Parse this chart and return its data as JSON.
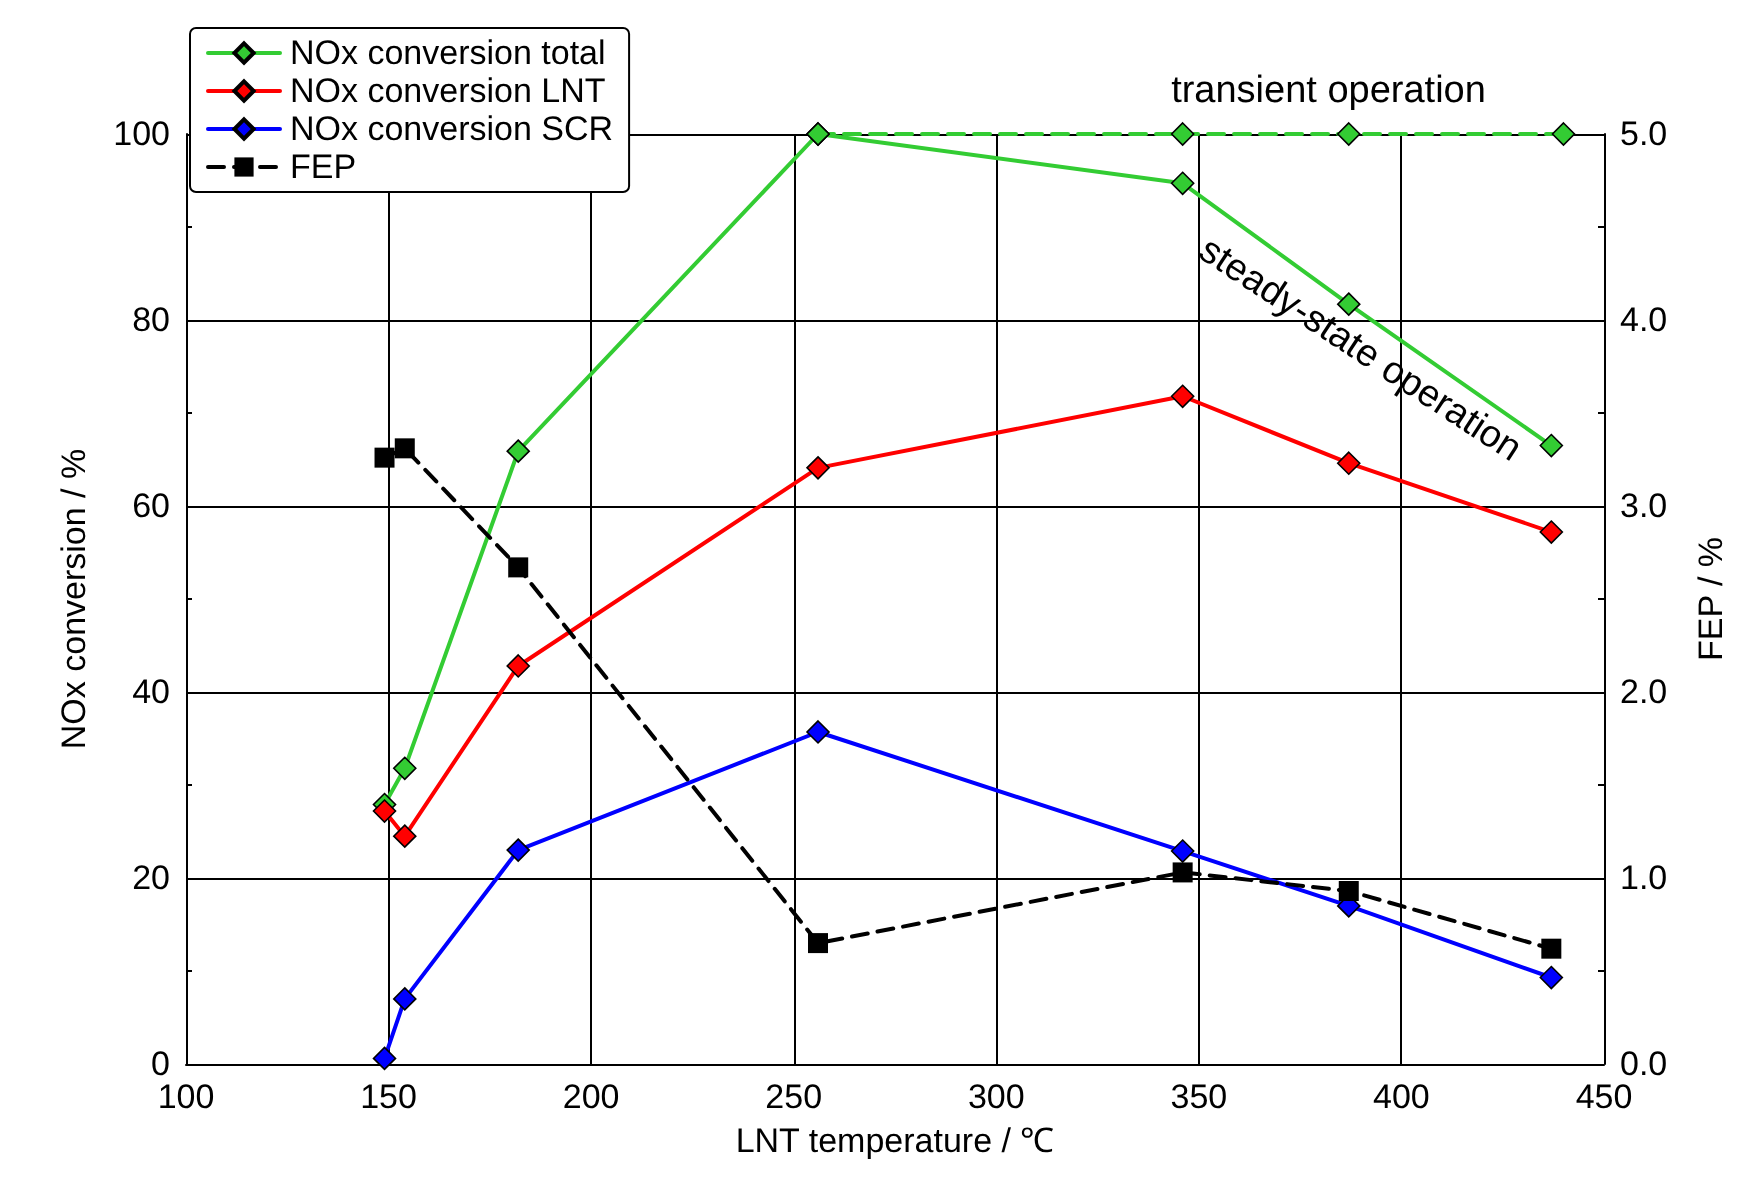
{
  "chart_data": {
    "type": "line",
    "xlabel": "LNT temperature / ℃",
    "ylabel": "NOx conversion / %",
    "y2label": "FEP / %",
    "x": [
      149,
      154,
      182,
      256,
      346,
      387,
      437
    ],
    "series": [
      {
        "name": "NOx conversion total",
        "color": "#33cc33",
        "marker": "diamond",
        "line_style": "solid",
        "values": [
          27.9,
          31.8,
          65.9,
          100,
          94.7,
          81.7,
          66.5
        ]
      },
      {
        "name": "NOx conversion LNT",
        "color": "#ff0000",
        "marker": "diamond",
        "line_style": "solid",
        "values": [
          27.2,
          24.5,
          42.8,
          64.1,
          71.8,
          64.6,
          57.2
        ]
      },
      {
        "name": "NOx conversion SCR",
        "color": "#0000ff",
        "marker": "diamond",
        "line_style": "solid",
        "values": [
          0.6,
          7.0,
          23.0,
          35.7,
          22.9,
          17.0,
          9.3
        ]
      },
      {
        "name": "FEP",
        "color": "#000000",
        "marker": "square",
        "line_style": "dashed",
        "axis": "y2",
        "values": [
          3.26,
          3.31,
          2.67,
          0.65,
          1.03,
          0.93,
          0.62
        ]
      },
      {
        "color": "#33cc33",
        "marker": "diamond",
        "line_style": "dashed",
        "x": [
          256,
          346,
          387,
          440
        ],
        "values": [
          100,
          100,
          100,
          100
        ]
      }
    ],
    "xlim": [
      100,
      450
    ],
    "xticks": [
      100,
      150,
      200,
      250,
      300,
      350,
      400,
      450
    ],
    "ylim": [
      0,
      100
    ],
    "yticks": [
      0,
      20,
      40,
      60,
      80,
      100
    ],
    "y2lim": [
      0,
      5
    ],
    "y2ticks": [
      {
        "value": 0,
        "label": "0.0"
      },
      {
        "value": 1,
        "label": "1.0"
      },
      {
        "value": 2,
        "label": "2.0"
      },
      {
        "value": 3,
        "label": "3.0"
      },
      {
        "value": 4,
        "label": "4.0"
      },
      {
        "value": 5,
        "label": "5.0"
      }
    ],
    "annotations": [
      {
        "text": "transient operation",
        "x": 382,
        "y": 100
      },
      "steady-state operation"
    ],
    "grid": true,
    "legend": "top left"
  }
}
